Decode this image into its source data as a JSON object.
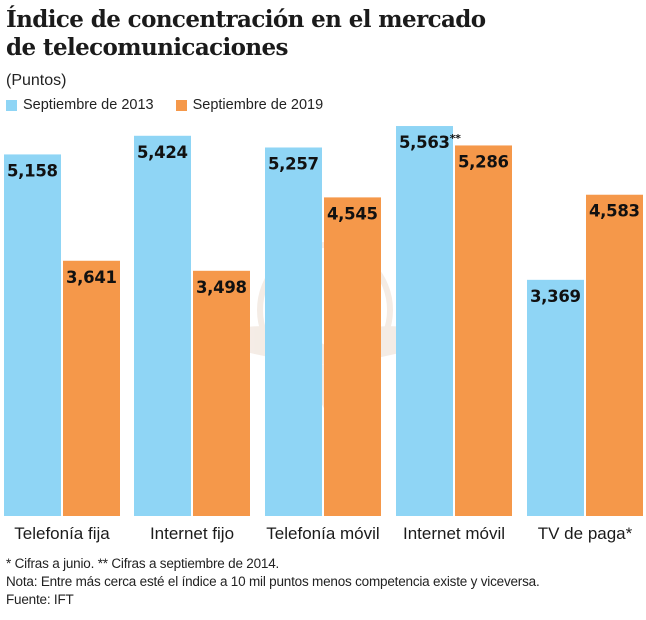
{
  "title_lines": [
    "Índice de concentración en el mercado",
    "de telecomunicaciones"
  ],
  "subtitle": "(Puntos)",
  "colors": {
    "series_2013": "#8fd5f5",
    "series_2019": "#f5984a"
  },
  "notes": [
    "* Cifras a junio. ** Cifras a septiembre de 2014.",
    "Nota: Entre más cerca esté el índice a 10 mil puntos menos competencia existe y viceversa.",
    "Fuente: IFT"
  ],
  "watermark": "eagle-logo",
  "chart_data": {
    "type": "bar",
    "title": "Índice de concentración en el mercado de telecomunicaciones",
    "subtitle": "(Puntos)",
    "xlabel": "",
    "ylabel": "Puntos",
    "ylim": [
      0,
      5600
    ],
    "grid": false,
    "legend_position": "top-left",
    "categories": [
      "Telefonía fija",
      "Internet fijo",
      "Telefonía móvil",
      "Internet móvil",
      "TV de paga*"
    ],
    "series": [
      {
        "name": "Septiembre de 2013",
        "values": [
          5158,
          5424,
          5257,
          5563,
          3369
        ],
        "labels": [
          "5,158",
          "5,424",
          "5,257",
          "5,563**",
          "3,369"
        ]
      },
      {
        "name": "Septiembre de 2019",
        "values": [
          3641,
          3498,
          4545,
          5286,
          4583
        ],
        "labels": [
          "3,641",
          "3,498",
          "4,545",
          "5,286",
          "4,583"
        ]
      }
    ]
  }
}
